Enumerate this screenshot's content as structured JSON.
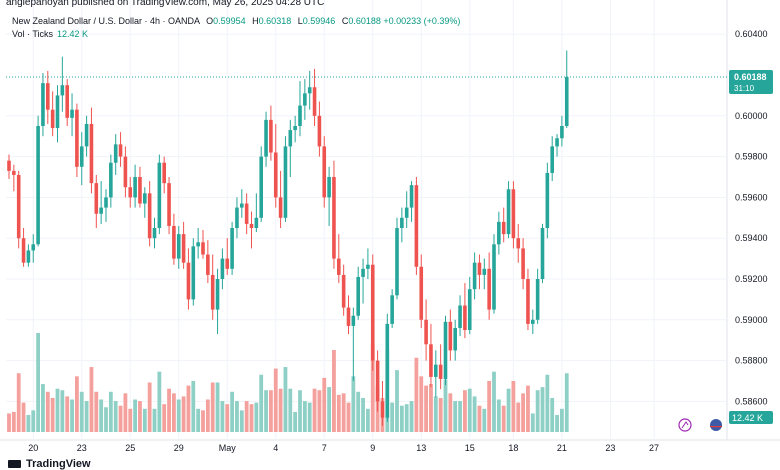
{
  "header": {
    "caption": "anglepanoyan published on TradingView.com, May 26, 2025 04:28 UTC",
    "symbol": "New Zealand Dollar / U.S. Dollar · 4h · OANDA",
    "open_label": "O",
    "open": "0.59954",
    "high_label": "H",
    "high": "0.60318",
    "low_label": "L",
    "low": "0.59946",
    "close_label": "C",
    "close": "0.60188",
    "change": "+0.00233 (+0.39%)",
    "vol_label": "Vol · Ticks",
    "vol_value": "12.42 K"
  },
  "footer": {
    "logo": "TradingView"
  },
  "colors": {
    "up": "#26a69a",
    "down": "#ef5350",
    "up_vol": "#8fd0c6",
    "down_vol": "#f4a09c",
    "grid": "#f0f3fa",
    "text": "#131722"
  },
  "chart_data": {
    "type": "candlestick",
    "symbol": "NZDUSD",
    "timeframe": "4h",
    "y_ticks": [
      "0.60400",
      "0.60000",
      "0.59800",
      "0.59600",
      "0.59400",
      "0.59200",
      "0.59000",
      "0.58800",
      "0.58600"
    ],
    "ylim": [
      0.5845,
      0.6045
    ],
    "x_ticks": [
      {
        "i": 5,
        "label": "20"
      },
      {
        "i": 15,
        "label": "23"
      },
      {
        "i": 25,
        "label": "25"
      },
      {
        "i": 35,
        "label": "29"
      },
      {
        "i": 45,
        "label": "May"
      },
      {
        "i": 55,
        "label": "4"
      },
      {
        "i": 65,
        "label": "7"
      },
      {
        "i": 75,
        "label": "9"
      },
      {
        "i": 85,
        "label": "13"
      },
      {
        "i": 95,
        "label": "15"
      },
      {
        "i": 104,
        "label": "18"
      },
      {
        "i": 114,
        "label": "21"
      },
      {
        "i": 124,
        "label": "23"
      },
      {
        "i": 133,
        "label": "27"
      }
    ],
    "current_price": "0.60188",
    "countdown": "31:10",
    "volume_label": "12.42 K",
    "candles": [
      [
        0.5978,
        0.5981,
        0.5969,
        0.5973
      ],
      [
        0.5973,
        0.5976,
        0.5963,
        0.5971
      ],
      [
        0.5971,
        0.5973,
        0.5935,
        0.594
      ],
      [
        0.594,
        0.5945,
        0.5926,
        0.5928
      ],
      [
        0.5928,
        0.5937,
        0.5926,
        0.5934
      ],
      [
        0.5934,
        0.5942,
        0.5928,
        0.5937
      ],
      [
        0.5937,
        0.6,
        0.5936,
        0.5995
      ],
      [
        0.5995,
        0.6021,
        0.599,
        0.6016
      ],
      [
        0.6016,
        0.6022,
        0.5996,
        0.6003
      ],
      [
        0.6003,
        0.6012,
        0.599,
        0.5994
      ],
      [
        0.5994,
        0.6015,
        0.5987,
        0.601
      ],
      [
        0.601,
        0.6029,
        0.6002,
        0.6015
      ],
      [
        0.6015,
        0.6018,
        0.5995,
        0.5999
      ],
      [
        0.5999,
        0.6011,
        0.599,
        0.6003
      ],
      [
        0.6003,
        0.6006,
        0.597,
        0.5975
      ],
      [
        0.5975,
        0.5992,
        0.5966,
        0.5985
      ],
      [
        0.5985,
        0.6,
        0.598,
        0.5996
      ],
      [
        0.5996,
        0.6004,
        0.5962,
        0.5967
      ],
      [
        0.5967,
        0.5971,
        0.5945,
        0.5952
      ],
      [
        0.5952,
        0.5968,
        0.5947,
        0.5955
      ],
      [
        0.5955,
        0.5964,
        0.5948,
        0.596
      ],
      [
        0.596,
        0.5981,
        0.5955,
        0.5977
      ],
      [
        0.5977,
        0.5991,
        0.5971,
        0.5986
      ],
      [
        0.5986,
        0.5992,
        0.5975,
        0.598
      ],
      [
        0.598,
        0.5985,
        0.596,
        0.5965
      ],
      [
        0.5965,
        0.597,
        0.5955,
        0.596
      ],
      [
        0.596,
        0.5976,
        0.5955,
        0.597
      ],
      [
        0.597,
        0.5975,
        0.5955,
        0.5957
      ],
      [
        0.5957,
        0.5965,
        0.595,
        0.5962
      ],
      [
        0.5962,
        0.5968,
        0.5936,
        0.594
      ],
      [
        0.594,
        0.595,
        0.5935,
        0.5945
      ],
      [
        0.5945,
        0.5981,
        0.5942,
        0.5977
      ],
      [
        0.5977,
        0.598,
        0.5962,
        0.5967
      ],
      [
        0.5967,
        0.597,
        0.5942,
        0.5946
      ],
      [
        0.5946,
        0.5952,
        0.5927,
        0.593
      ],
      [
        0.593,
        0.5946,
        0.5925,
        0.5942
      ],
      [
        0.5942,
        0.5948,
        0.5925,
        0.5928
      ],
      [
        0.5928,
        0.5935,
        0.5905,
        0.591
      ],
      [
        0.591,
        0.594,
        0.5907,
        0.5936
      ],
      [
        0.5936,
        0.5945,
        0.593,
        0.5938
      ],
      [
        0.5938,
        0.5944,
        0.593,
        0.5932
      ],
      [
        0.5932,
        0.5939,
        0.5918,
        0.5922
      ],
      [
        0.5922,
        0.5932,
        0.59,
        0.5905
      ],
      [
        0.5905,
        0.5925,
        0.5893,
        0.592
      ],
      [
        0.592,
        0.5935,
        0.5915,
        0.593
      ],
      [
        0.593,
        0.594,
        0.5922,
        0.5925
      ],
      [
        0.5925,
        0.5948,
        0.5922,
        0.5945
      ],
      [
        0.5945,
        0.596,
        0.594,
        0.5955
      ],
      [
        0.5955,
        0.5964,
        0.595,
        0.5957
      ],
      [
        0.5957,
        0.5962,
        0.5942,
        0.5947
      ],
      [
        0.5947,
        0.5953,
        0.5935,
        0.5945
      ],
      [
        0.5945,
        0.5962,
        0.5943,
        0.595
      ],
      [
        0.595,
        0.5985,
        0.5948,
        0.598
      ],
      [
        0.598,
        0.6002,
        0.5975,
        0.5998
      ],
      [
        0.5998,
        0.6005,
        0.5978,
        0.5982
      ],
      [
        0.5982,
        0.5996,
        0.5955,
        0.596
      ],
      [
        0.596,
        0.5973,
        0.5945,
        0.595
      ],
      [
        0.595,
        0.599,
        0.5948,
        0.5985
      ],
      [
        0.5985,
        0.5998,
        0.597,
        0.5993
      ],
      [
        0.5993,
        0.6,
        0.5987,
        0.5995
      ],
      [
        0.5995,
        0.6017,
        0.599,
        0.6005
      ],
      [
        0.6005,
        0.6018,
        0.5998,
        0.6011
      ],
      [
        0.6011,
        0.6022,
        0.6003,
        0.6014
      ],
      [
        0.6014,
        0.6023,
        0.5995,
        0.6
      ],
      [
        0.6,
        0.6007,
        0.598,
        0.5985
      ],
      [
        0.5985,
        0.599,
        0.5955,
        0.596
      ],
      [
        0.596,
        0.5975,
        0.5946,
        0.597
      ],
      [
        0.597,
        0.5978,
        0.5925,
        0.593
      ],
      [
        0.593,
        0.5942,
        0.5918,
        0.5922
      ],
      [
        0.5922,
        0.5927,
        0.5902,
        0.5906
      ],
      [
        0.5906,
        0.5912,
        0.5893,
        0.5897
      ],
      [
        0.5897,
        0.5906,
        0.587,
        0.5902
      ],
      [
        0.5902,
        0.5926,
        0.59,
        0.5921
      ],
      [
        0.5921,
        0.593,
        0.5908,
        0.5925
      ],
      [
        0.5925,
        0.5935,
        0.592,
        0.5927
      ],
      [
        0.5927,
        0.5932,
        0.5875,
        0.588
      ],
      [
        0.588,
        0.5885,
        0.5855,
        0.586
      ],
      [
        0.586,
        0.587,
        0.5848,
        0.5852
      ],
      [
        0.5852,
        0.5903,
        0.585,
        0.5898
      ],
      [
        0.5898,
        0.5915,
        0.5896,
        0.5912
      ],
      [
        0.5912,
        0.595,
        0.591,
        0.5945
      ],
      [
        0.5945,
        0.5955,
        0.5938,
        0.595
      ],
      [
        0.595,
        0.5963,
        0.5945,
        0.5955
      ],
      [
        0.5955,
        0.5968,
        0.5948,
        0.5966
      ],
      [
        0.5966,
        0.597,
        0.5922,
        0.5926
      ],
      [
        0.5926,
        0.5932,
        0.5896,
        0.59
      ],
      [
        0.59,
        0.591,
        0.588,
        0.5888
      ],
      [
        0.5888,
        0.5898,
        0.5867,
        0.5872
      ],
      [
        0.5872,
        0.5885,
        0.5862,
        0.5878
      ],
      [
        0.5878,
        0.5888,
        0.5866,
        0.5871
      ],
      [
        0.5871,
        0.5902,
        0.5868,
        0.5899
      ],
      [
        0.5899,
        0.5905,
        0.588,
        0.5885
      ],
      [
        0.5885,
        0.59,
        0.588,
        0.5896
      ],
      [
        0.5896,
        0.5912,
        0.5892,
        0.5907
      ],
      [
        0.5907,
        0.5918,
        0.5891,
        0.5895
      ],
      [
        0.5895,
        0.5921,
        0.5893,
        0.5915
      ],
      [
        0.5915,
        0.5933,
        0.591,
        0.5928
      ],
      [
        0.5928,
        0.5932,
        0.5915,
        0.5922
      ],
      [
        0.5922,
        0.593,
        0.5915,
        0.5925
      ],
      [
        0.5925,
        0.5933,
        0.59,
        0.5905
      ],
      [
        0.5905,
        0.5942,
        0.5903,
        0.5937
      ],
      [
        0.5937,
        0.5953,
        0.5932,
        0.5948
      ],
      [
        0.5948,
        0.5955,
        0.5938,
        0.5942
      ],
      [
        0.5942,
        0.5968,
        0.594,
        0.5964
      ],
      [
        0.5964,
        0.5968,
        0.5935,
        0.594
      ],
      [
        0.594,
        0.5947,
        0.5928,
        0.5935
      ],
      [
        0.5935,
        0.594,
        0.5915,
        0.592
      ],
      [
        0.592,
        0.5925,
        0.5895,
        0.5898
      ],
      [
        0.5898,
        0.5905,
        0.5893,
        0.59
      ],
      [
        0.59,
        0.5925,
        0.5898,
        0.592
      ],
      [
        0.592,
        0.5947,
        0.5918,
        0.5945
      ],
      [
        0.5945,
        0.5977,
        0.594,
        0.5972
      ],
      [
        0.5972,
        0.599,
        0.5968,
        0.5985
      ],
      [
        0.5985,
        0.5991,
        0.598,
        0.5989
      ],
      [
        0.5989,
        0.6,
        0.5985,
        0.5995
      ],
      [
        0.5995,
        0.6032,
        0.5994,
        0.6019
      ]
    ]
  }
}
